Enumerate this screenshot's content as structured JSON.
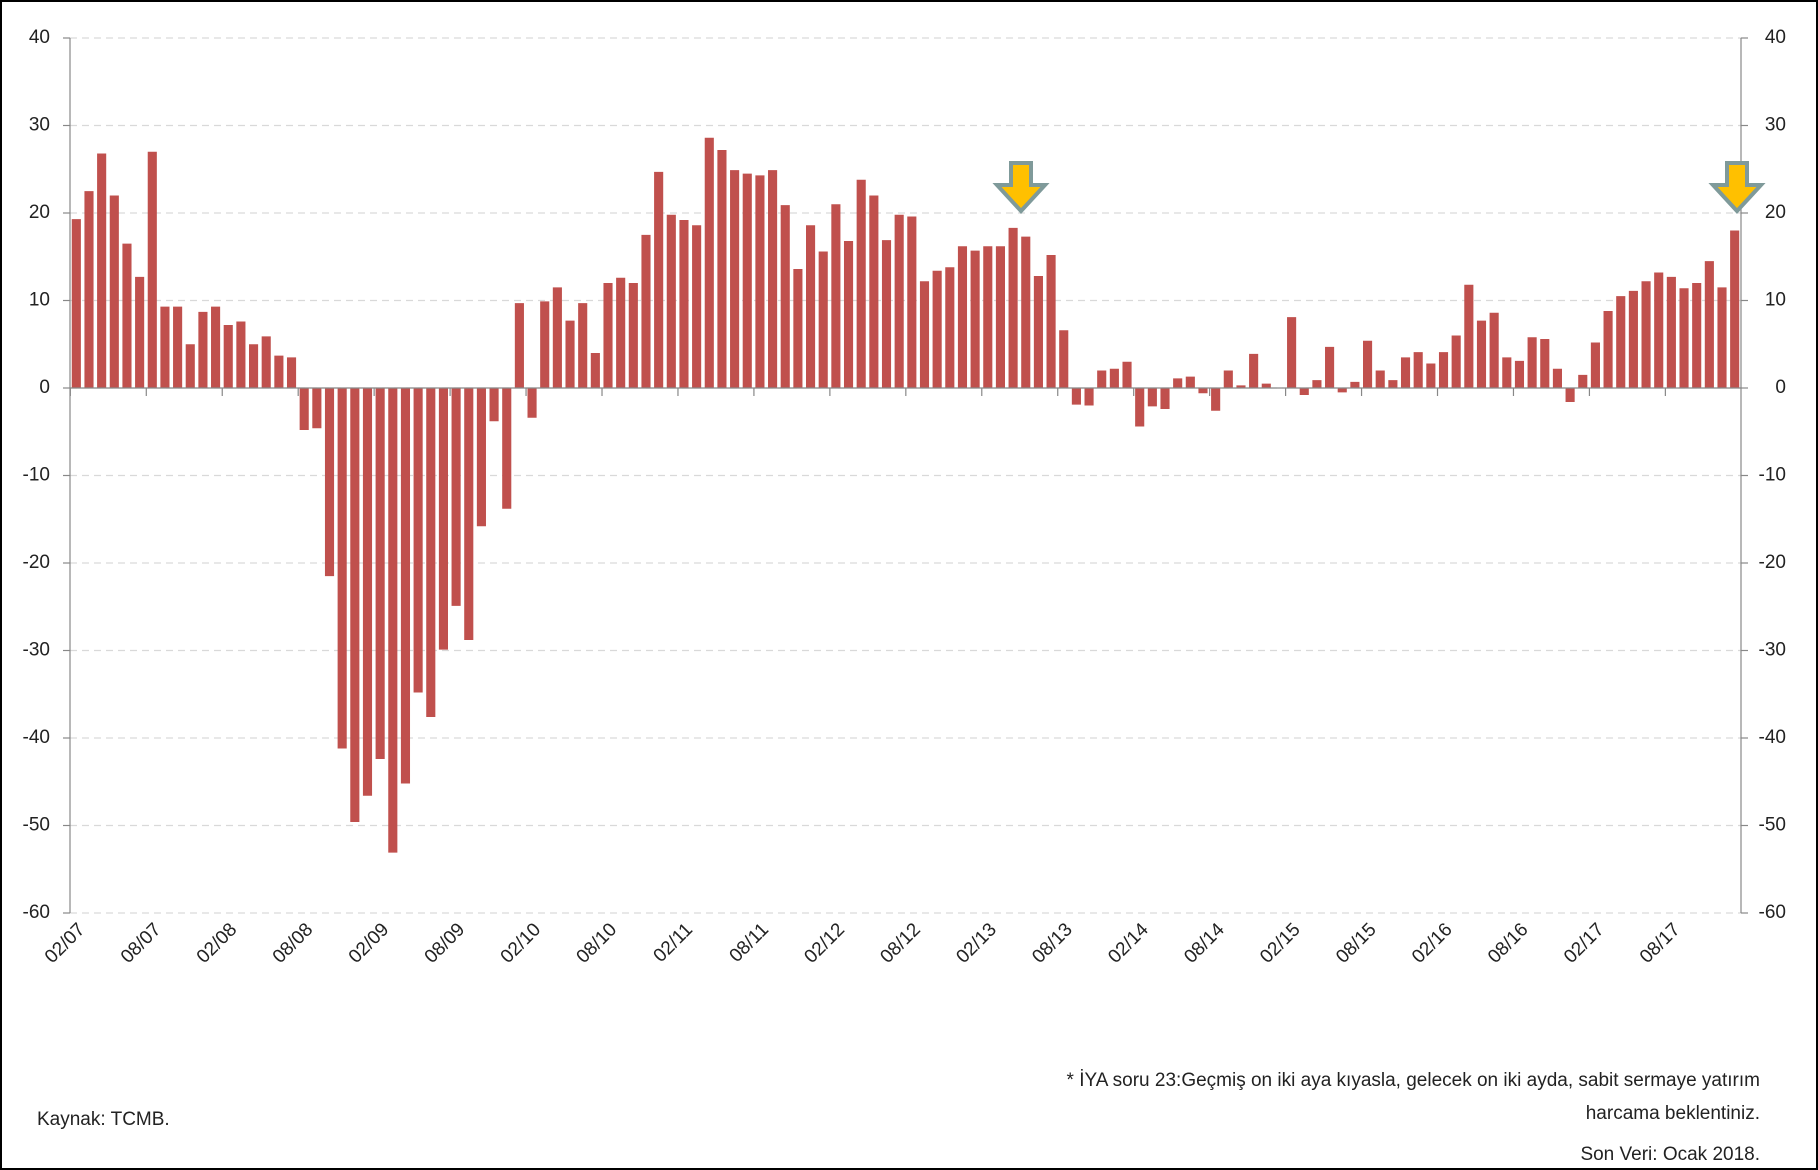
{
  "chart_data": {
    "type": "bar",
    "categories": [
      "02/07",
      null,
      null,
      null,
      null,
      null,
      "08/07",
      null,
      null,
      null,
      null,
      null,
      "02/08",
      null,
      null,
      null,
      null,
      null,
      "08/08",
      null,
      null,
      null,
      null,
      null,
      "02/09",
      null,
      null,
      null,
      null,
      null,
      "08/09",
      null,
      null,
      null,
      null,
      null,
      "02/10",
      null,
      null,
      null,
      null,
      null,
      "08/10",
      null,
      null,
      null,
      null,
      null,
      "02/11",
      null,
      null,
      null,
      null,
      null,
      "08/11",
      null,
      null,
      null,
      null,
      null,
      "02/12",
      null,
      null,
      null,
      null,
      null,
      "08/12",
      null,
      null,
      null,
      null,
      null,
      "02/13",
      null,
      null,
      null,
      null,
      null,
      "08/13",
      null,
      null,
      null,
      null,
      null,
      "02/14",
      null,
      null,
      null,
      null,
      null,
      "08/14",
      null,
      null,
      null,
      null,
      null,
      "02/15",
      null,
      null,
      null,
      null,
      null,
      "08/15",
      null,
      null,
      null,
      null,
      null,
      "02/16",
      null,
      null,
      null,
      null,
      null,
      "08/16",
      null,
      null,
      null,
      null,
      null,
      "02/17",
      null,
      null,
      null,
      null,
      null,
      "08/17",
      null,
      null,
      null,
      null,
      null
    ],
    "values": [
      19.3,
      22.5,
      26.8,
      22,
      16.5,
      12.7,
      27,
      9.3,
      9.3,
      5,
      8.7,
      9.3,
      7.2,
      7.6,
      5,
      5.9,
      3.7,
      3.5,
      -4.8,
      -4.6,
      -21.5,
      -41.2,
      -49.6,
      -46.6,
      -42.4,
      -53.1,
      -45.2,
      -34.8,
      -37.6,
      -29.9,
      -24.9,
      -28.8,
      -15.8,
      -3.8,
      -13.8,
      9.7,
      -3.4,
      9.9,
      11.5,
      7.7,
      9.7,
      4,
      12,
      12.6,
      12,
      17.5,
      24.7,
      19.8,
      19.2,
      18.6,
      28.6,
      27.2,
      24.9,
      24.5,
      24.3,
      24.9,
      20.9,
      13.6,
      18.6,
      15.6,
      21,
      16.8,
      23.8,
      22,
      16.9,
      19.8,
      19.6,
      12.2,
      13.4,
      13.8,
      16.2,
      15.7,
      16.2,
      16.2,
      18.3,
      17.3,
      12.8,
      15.2,
      6.6,
      -1.9,
      -2,
      2,
      2.2,
      3,
      -4.4,
      -2.1,
      -2.4,
      1.1,
      1.3,
      -0.6,
      -2.6,
      2,
      0.3,
      3.9,
      0.5,
      0,
      8.1,
      -0.8,
      0.9,
      4.7,
      -0.5,
      0.7,
      5.4,
      2,
      0.9,
      3.5,
      4.1,
      2.8,
      4.1,
      6,
      11.8,
      7.7,
      8.6,
      3.5,
      3.1,
      5.8,
      5.6,
      2.2,
      -1.6,
      1.5,
      5.2,
      8.8,
      10.5,
      11.1,
      12.2,
      13.2,
      12.7,
      11.4,
      12,
      14.5,
      11.5,
      18
    ],
    "color": "#c0504d",
    "ylim": [
      -60,
      40
    ],
    "yticks": [
      -60,
      -50,
      -40,
      -30,
      -20,
      -10,
      0,
      10,
      20,
      30,
      40
    ],
    "y2lim": [
      -60,
      40
    ],
    "y2ticks": [
      -60,
      -50,
      -40,
      -30,
      -20,
      -10,
      0,
      10,
      20,
      30,
      40
    ],
    "grid": true
  },
  "footnote_lines": [
    "* İYA soru 23:Geçmiş on iki aya kıyasla, gelecek on iki ayda, sabit sermaye yatırım",
    "harcama beklentiniz."
  ],
  "source": "Kaynak: TCMB.",
  "last_data": "Son Veri: Ocak 2018."
}
